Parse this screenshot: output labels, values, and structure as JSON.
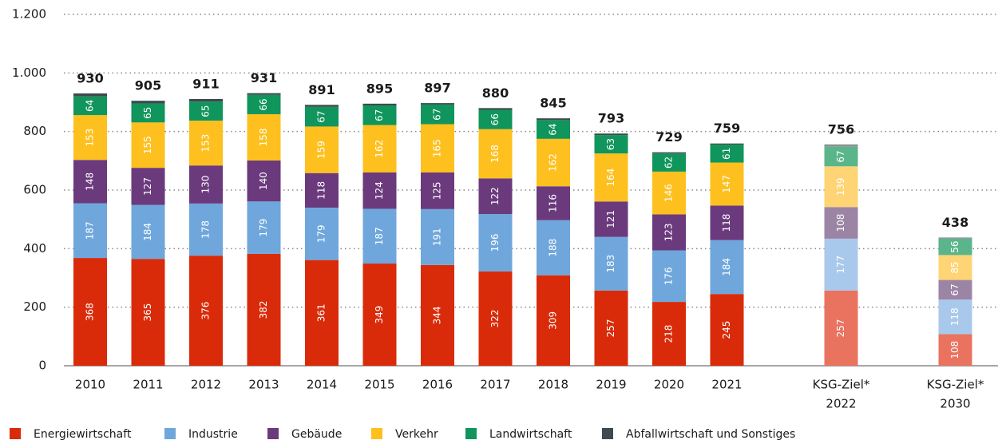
{
  "chart_data": {
    "type": "stacked_bar",
    "categories": [
      [
        "2010"
      ],
      [
        "2011"
      ],
      [
        "2012"
      ],
      [
        "2013"
      ],
      [
        "2014"
      ],
      [
        "2015"
      ],
      [
        "2016"
      ],
      [
        "2017"
      ],
      [
        "2018"
      ],
      [
        "2019"
      ],
      [
        "2020"
      ],
      [
        "2021"
      ],
      [
        "KSG-Ziel*",
        "2022"
      ],
      [
        "KSG-Ziel*",
        "2030"
      ]
    ],
    "totals": [
      930,
      905,
      911,
      931,
      891,
      895,
      897,
      880,
      845,
      793,
      729,
      759,
      756,
      438
    ],
    "ylim": [
      0,
      1200
    ],
    "yticks": [
      0,
      200,
      400,
      600,
      800,
      {
        "value": 1000,
        "label": "1.000"
      },
      {
        "value": 1200,
        "label": "1.200"
      }
    ],
    "grid": true,
    "series": [
      {
        "name": "Energiewirtschaft",
        "show_labels": true,
        "colors": [
          "#d92b0a",
          "#d92b0a",
          "#d92b0a",
          "#d92b0a",
          "#d92b0a",
          "#d92b0a",
          "#d92b0a",
          "#d92b0a",
          "#d92b0a",
          "#d92b0a",
          "#d92b0a",
          "#d92b0a",
          "#e9735f",
          "#e9735f"
        ],
        "values": [
          368,
          365,
          376,
          382,
          361,
          349,
          344,
          322,
          309,
          257,
          218,
          245,
          257,
          108
        ]
      },
      {
        "name": "Industrie",
        "show_labels": true,
        "colors": [
          "#6fa7dc",
          "#6fa7dc",
          "#6fa7dc",
          "#6fa7dc",
          "#6fa7dc",
          "#6fa7dc",
          "#6fa7dc",
          "#6fa7dc",
          "#6fa7dc",
          "#6fa7dc",
          "#6fa7dc",
          "#6fa7dc",
          "#a9c9ec",
          "#a9c9ec"
        ],
        "values": [
          187,
          184,
          178,
          179,
          179,
          187,
          191,
          196,
          188,
          183,
          176,
          184,
          177,
          118
        ]
      },
      {
        "name": "Gebäude",
        "show_labels": true,
        "colors": [
          "#6b3a7d",
          "#6b3a7d",
          "#6b3a7d",
          "#6b3a7d",
          "#6b3a7d",
          "#6b3a7d",
          "#6b3a7d",
          "#6b3a7d",
          "#6b3a7d",
          "#6b3a7d",
          "#6b3a7d",
          "#6b3a7d",
          "#9c84a5",
          "#9c84a5"
        ],
        "values": [
          148,
          127,
          130,
          140,
          118,
          124,
          125,
          122,
          116,
          121,
          123,
          118,
          108,
          67
        ]
      },
      {
        "name": "Verkehr",
        "show_labels": true,
        "colors": [
          "#fdc01e",
          "#fdc01e",
          "#fdc01e",
          "#fdc01e",
          "#fdc01e",
          "#fdc01e",
          "#fdc01e",
          "#fdc01e",
          "#fdc01e",
          "#fdc01e",
          "#fdc01e",
          "#fdc01e",
          "#fed474",
          "#fed474"
        ],
        "values": [
          153,
          155,
          153,
          158,
          159,
          162,
          165,
          168,
          162,
          164,
          146,
          147,
          139,
          85
        ]
      },
      {
        "name": "Landwirtschaft",
        "show_labels": true,
        "colors": [
          "#10955c",
          "#10955c",
          "#10955c",
          "#10955c",
          "#10955c",
          "#10955c",
          "#10955c",
          "#10955c",
          "#10955c",
          "#10955c",
          "#10955c",
          "#10955c",
          "#5ab58a",
          "#5ab58a"
        ],
        "values": [
          64,
          65,
          65,
          66,
          67,
          67,
          67,
          66,
          64,
          63,
          62,
          61,
          67,
          56
        ]
      },
      {
        "name": "Abfallwirtschaft und Sonstiges",
        "show_labels": false,
        "colors": [
          "#3d4a4f",
          "#3d4a4f",
          "#3d4a4f",
          "#3d4a4f",
          "#3d4a4f",
          "#3d4a4f",
          "#3d4a4f",
          "#3d4a4f",
          "#3d4a4f",
          "#3d4a4f",
          "#3d4a4f",
          "#3d4a4f",
          "#8a9092",
          "#8a9092"
        ],
        "values": [
          10,
          9,
          9,
          6,
          7,
          6,
          5,
          6,
          6,
          5,
          4,
          4,
          8,
          4
        ]
      }
    ]
  }
}
